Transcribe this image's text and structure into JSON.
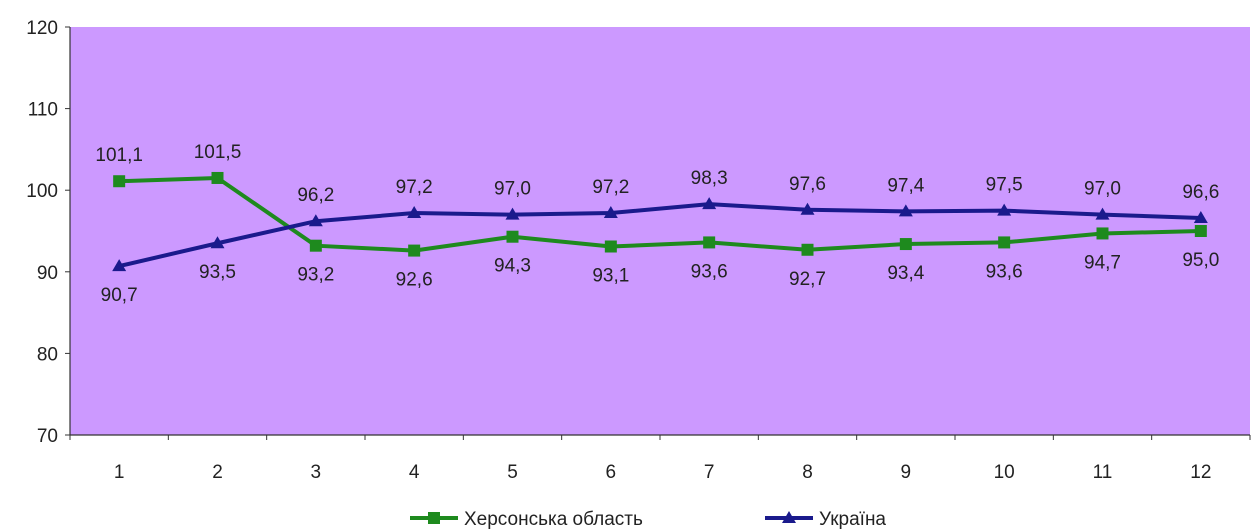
{
  "chart_data": {
    "type": "line",
    "title": "",
    "xlabel": "",
    "ylabel": "",
    "ylim": [
      70,
      120
    ],
    "yticks": [
      70,
      80,
      90,
      100,
      110,
      120
    ],
    "categories": [
      "1",
      "2",
      "3",
      "4",
      "5",
      "6",
      "7",
      "8",
      "9",
      "10",
      "11",
      "12"
    ],
    "grid": false,
    "legend_position": "bottom",
    "plot_background": "#cc99ff",
    "series": [
      {
        "name": "Херсонська область",
        "color": "#1e8a1e",
        "marker": "square",
        "values": [
          101.1,
          101.5,
          93.2,
          92.6,
          94.3,
          93.1,
          93.6,
          92.7,
          93.4,
          93.6,
          94.7,
          95.0
        ],
        "labels": [
          "101,1",
          "101,5",
          "93,2",
          "92,6",
          "94,3",
          "93,1",
          "93,6",
          "92,7",
          "93,4",
          "93,6",
          "94,7",
          "95,0"
        ]
      },
      {
        "name": "Україна",
        "color": "#1a1a8c",
        "marker": "triangle",
        "values": [
          90.7,
          93.5,
          96.2,
          97.2,
          97.0,
          97.2,
          98.3,
          97.6,
          97.4,
          97.5,
          97.0,
          96.6
        ],
        "labels": [
          "90,7",
          "93,5",
          "96,2",
          "97,2",
          "97,0",
          "97,2",
          "98,3",
          "97,6",
          "97,4",
          "97,5",
          "97,0",
          "96,6"
        ]
      }
    ]
  }
}
